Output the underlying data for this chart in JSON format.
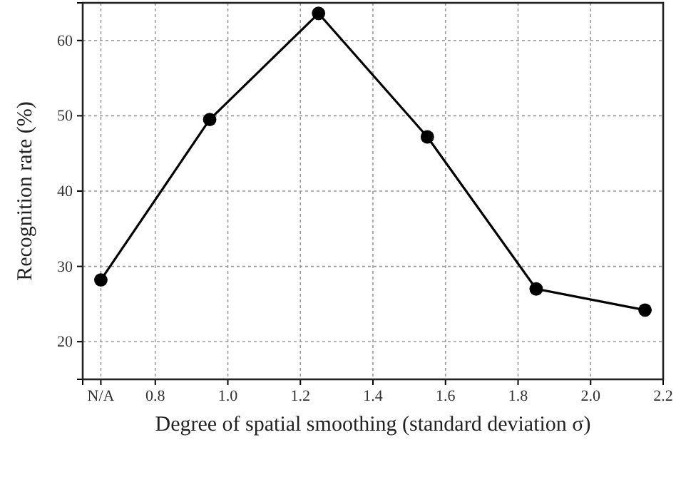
{
  "chart_data": {
    "type": "line",
    "xlabel": "Degree of spatial smoothing (standard deviation σ)",
    "ylabel": "Recognition rate (%)",
    "x": [
      0.65,
      0.95,
      1.25,
      1.55,
      1.85,
      2.15
    ],
    "series": [
      {
        "color": "#000000",
        "values": [
          28.2,
          49.5,
          63.6,
          47.2,
          27.0,
          24.2
        ]
      }
    ],
    "xlim": [
      0.6,
      2.2
    ],
    "xticks": [
      {
        "value": 0.65,
        "label": "N/A"
      },
      {
        "value": 0.8,
        "label": "0.8"
      },
      {
        "value": 1.0,
        "label": "1.0"
      },
      {
        "value": 1.2,
        "label": "1.2"
      },
      {
        "value": 1.4,
        "label": "1.4"
      },
      {
        "value": 1.6,
        "label": "1.6"
      },
      {
        "value": 1.8,
        "label": "1.8"
      },
      {
        "value": 2.0,
        "label": "2.0"
      },
      {
        "value": 2.2,
        "label": "2.2"
      }
    ],
    "ylim": [
      15,
      65
    ],
    "yticks": [
      20,
      30,
      40,
      50,
      60
    ],
    "grid": true,
    "marker": "circle",
    "line_style": "solid"
  }
}
